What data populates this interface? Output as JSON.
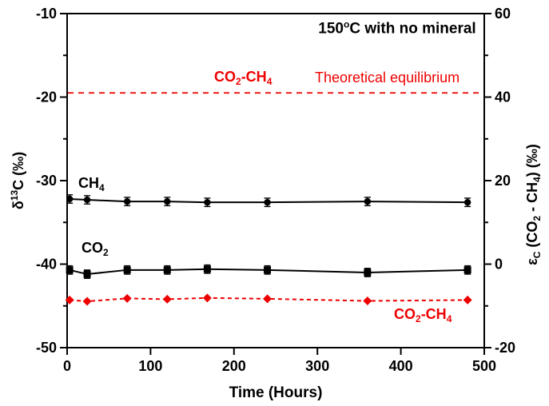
{
  "chart_data": {
    "type": "line",
    "title": {
      "parts": [
        {
          "t": "150"
        },
        {
          "t": "o",
          "style": "sup"
        },
        {
          "t": "C with no mineral"
        }
      ]
    },
    "x_axis": {
      "label": "Time (Hours)",
      "range": [
        0,
        500
      ],
      "major_ticks": [
        0,
        100,
        200,
        300,
        400,
        500
      ]
    },
    "y_axis_left": {
      "label_parts": [
        {
          "t": "δ"
        },
        {
          "t": "13",
          "style": "sup"
        },
        {
          "t": "C (‰)"
        }
      ],
      "range": [
        -50,
        -10
      ],
      "major_ticks": [
        -10,
        -20,
        -30,
        -40,
        -50
      ],
      "minor_ticks": [
        -15,
        -25,
        -35,
        -45
      ]
    },
    "y_axis_right": {
      "label_parts": [
        {
          "t": "ε"
        },
        {
          "t": "C",
          "style": "sub"
        },
        {
          "t": " (CO"
        },
        {
          "t": "2",
          "style": "sub"
        },
        {
          "t": " - CH"
        },
        {
          "t": "4",
          "style": "sub"
        },
        {
          "t": ") (‰)"
        }
      ],
      "range": [
        -20,
        60
      ],
      "major_ticks": [
        60,
        40,
        20,
        0,
        -20
      ],
      "minor_ticks": [
        50,
        30,
        10,
        -10
      ]
    },
    "x": [
      3,
      24,
      72,
      120,
      168,
      240,
      360,
      480
    ],
    "series": [
      {
        "name": "CH4",
        "axis": "left",
        "color": "#000000",
        "marker": "circle",
        "line": "solid",
        "values": [
          -32.2,
          -32.3,
          -32.5,
          -32.5,
          -32.6,
          -32.6,
          -32.5,
          -32.6
        ],
        "yerr": 0.5
      },
      {
        "name": "CO2",
        "axis": "left",
        "color": "#000000",
        "marker": "square",
        "line": "solid",
        "values": [
          -40.7,
          -41.2,
          -40.7,
          -40.7,
          -40.6,
          -40.7,
          -41.0,
          -40.7
        ],
        "yerr": 0.5
      },
      {
        "name": "CO2-CH4",
        "axis": "right",
        "color": "#ee0000",
        "marker": "diamond",
        "line": "dashed",
        "values": [
          -8.6,
          -8.9,
          -8.2,
          -8.4,
          -8.1,
          -8.3,
          -8.8,
          -8.6
        ],
        "yerr": 0
      }
    ],
    "reference_line": {
      "name": "Theoretical equilibrium",
      "axis": "right",
      "value": 41,
      "color": "#ee0000",
      "style": "dashed"
    },
    "annotations": [
      {
        "id": "ch4-series-label",
        "parts": [
          {
            "t": "CH"
          },
          {
            "t": "4",
            "style": "sub"
          }
        ],
        "x": 98,
        "y": 220,
        "color": "#000000",
        "bold": true
      },
      {
        "id": "co2-series-label",
        "parts": [
          {
            "t": "CO"
          },
          {
            "t": "2",
            "style": "sub"
          }
        ],
        "x": 102,
        "y": 301,
        "color": "#000000",
        "bold": true
      },
      {
        "id": "equilibrium-pair-label",
        "parts": [
          {
            "t": "CO"
          },
          {
            "t": "2",
            "style": "sub"
          },
          {
            "t": "-CH"
          },
          {
            "t": "4",
            "style": "sub"
          }
        ],
        "x": 268,
        "y": 87,
        "color": "#ee0000",
        "bold": true
      },
      {
        "id": "equilibrium-text-label",
        "parts": [
          {
            "t": "Theoretical equilibrium"
          }
        ],
        "x": 394,
        "y": 88,
        "color": "#ee0000",
        "bold": false
      },
      {
        "id": "pair-series-label",
        "parts": [
          {
            "t": "CO"
          },
          {
            "t": "2",
            "style": "sub"
          },
          {
            "t": "-CH"
          },
          {
            "t": "4",
            "style": "sub"
          }
        ],
        "x": 493,
        "y": 384,
        "color": "#ee0000",
        "bold": true
      }
    ],
    "colors": {
      "foreground": "#000000",
      "accent_red": "#ee0000",
      "background": "#ffffff"
    }
  }
}
